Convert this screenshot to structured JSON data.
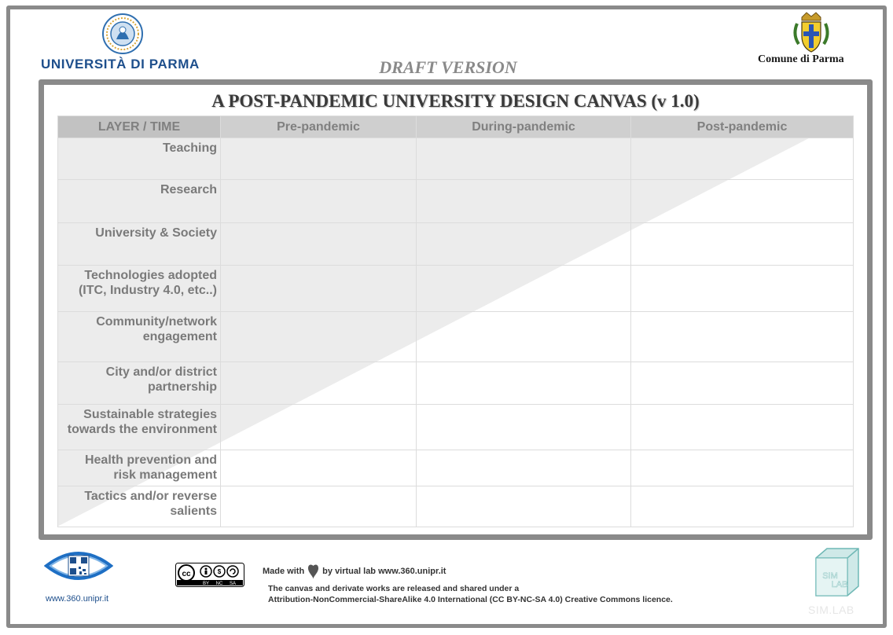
{
  "header": {
    "university_name": "UNIVERSITÀ DI PARMA",
    "draft_label": "DRAFT VERSION",
    "comune_name": "Comune di Parma"
  },
  "canvas": {
    "title": "A POST-PANDEMIC UNIVERSITY DESIGN CANVAS (v 1.0)",
    "columns": [
      "LAYER / TIME",
      "Pre-pandemic",
      "During-pandemic",
      "Post-pandemic"
    ],
    "rows": [
      {
        "label_line1": "Teaching",
        "label_line2": ""
      },
      {
        "label_line1": "Research",
        "label_line2": ""
      },
      {
        "label_line1": "University & Society",
        "label_line2": ""
      },
      {
        "label_line1": "Technologies adopted",
        "label_line2": "(ITC, Industry 4.0, etc..)"
      },
      {
        "label_line1": "Community/network",
        "label_line2": "engagement"
      },
      {
        "label_line1": "City and/or district",
        "label_line2": "partnership"
      },
      {
        "label_line1": "Sustainable strategies",
        "label_line2": "towards the environment"
      },
      {
        "label_line1": "Health prevention and",
        "label_line2": "risk management"
      },
      {
        "label_line1": "Tactics and/or reverse",
        "label_line2": "salients"
      }
    ]
  },
  "footer": {
    "site_url": "www.360.unipr.it",
    "made_with_prefix": "Made with",
    "made_with_suffix": "by virtual lab www.360.unipr.it",
    "licence_line1": "The canvas and derivate works are released and shared under a",
    "licence_line2": "Attribution-NonCommercial-ShareAlike 4.0 International (CC BY-NC-SA 4.0) Creative Commons  licence.",
    "cc_labels": [
      "BY",
      "NC",
      "SA"
    ],
    "simlab_name": "SIM.LAB"
  },
  "icons": {
    "university_seal": "university-seal-icon",
    "comune_crest": "coat-of-arms-icon",
    "eye_qr": "eye-qr-icon",
    "cc_badge": "creative-commons-icon",
    "heart": "heart-icon",
    "simlab_cube": "cube-icon"
  },
  "colors": {
    "university_blue": "#1e4f8c",
    "frame_gray": "#8a8a8a",
    "header_gray": "#cfcfcf",
    "shading_gray": "#ededed"
  }
}
